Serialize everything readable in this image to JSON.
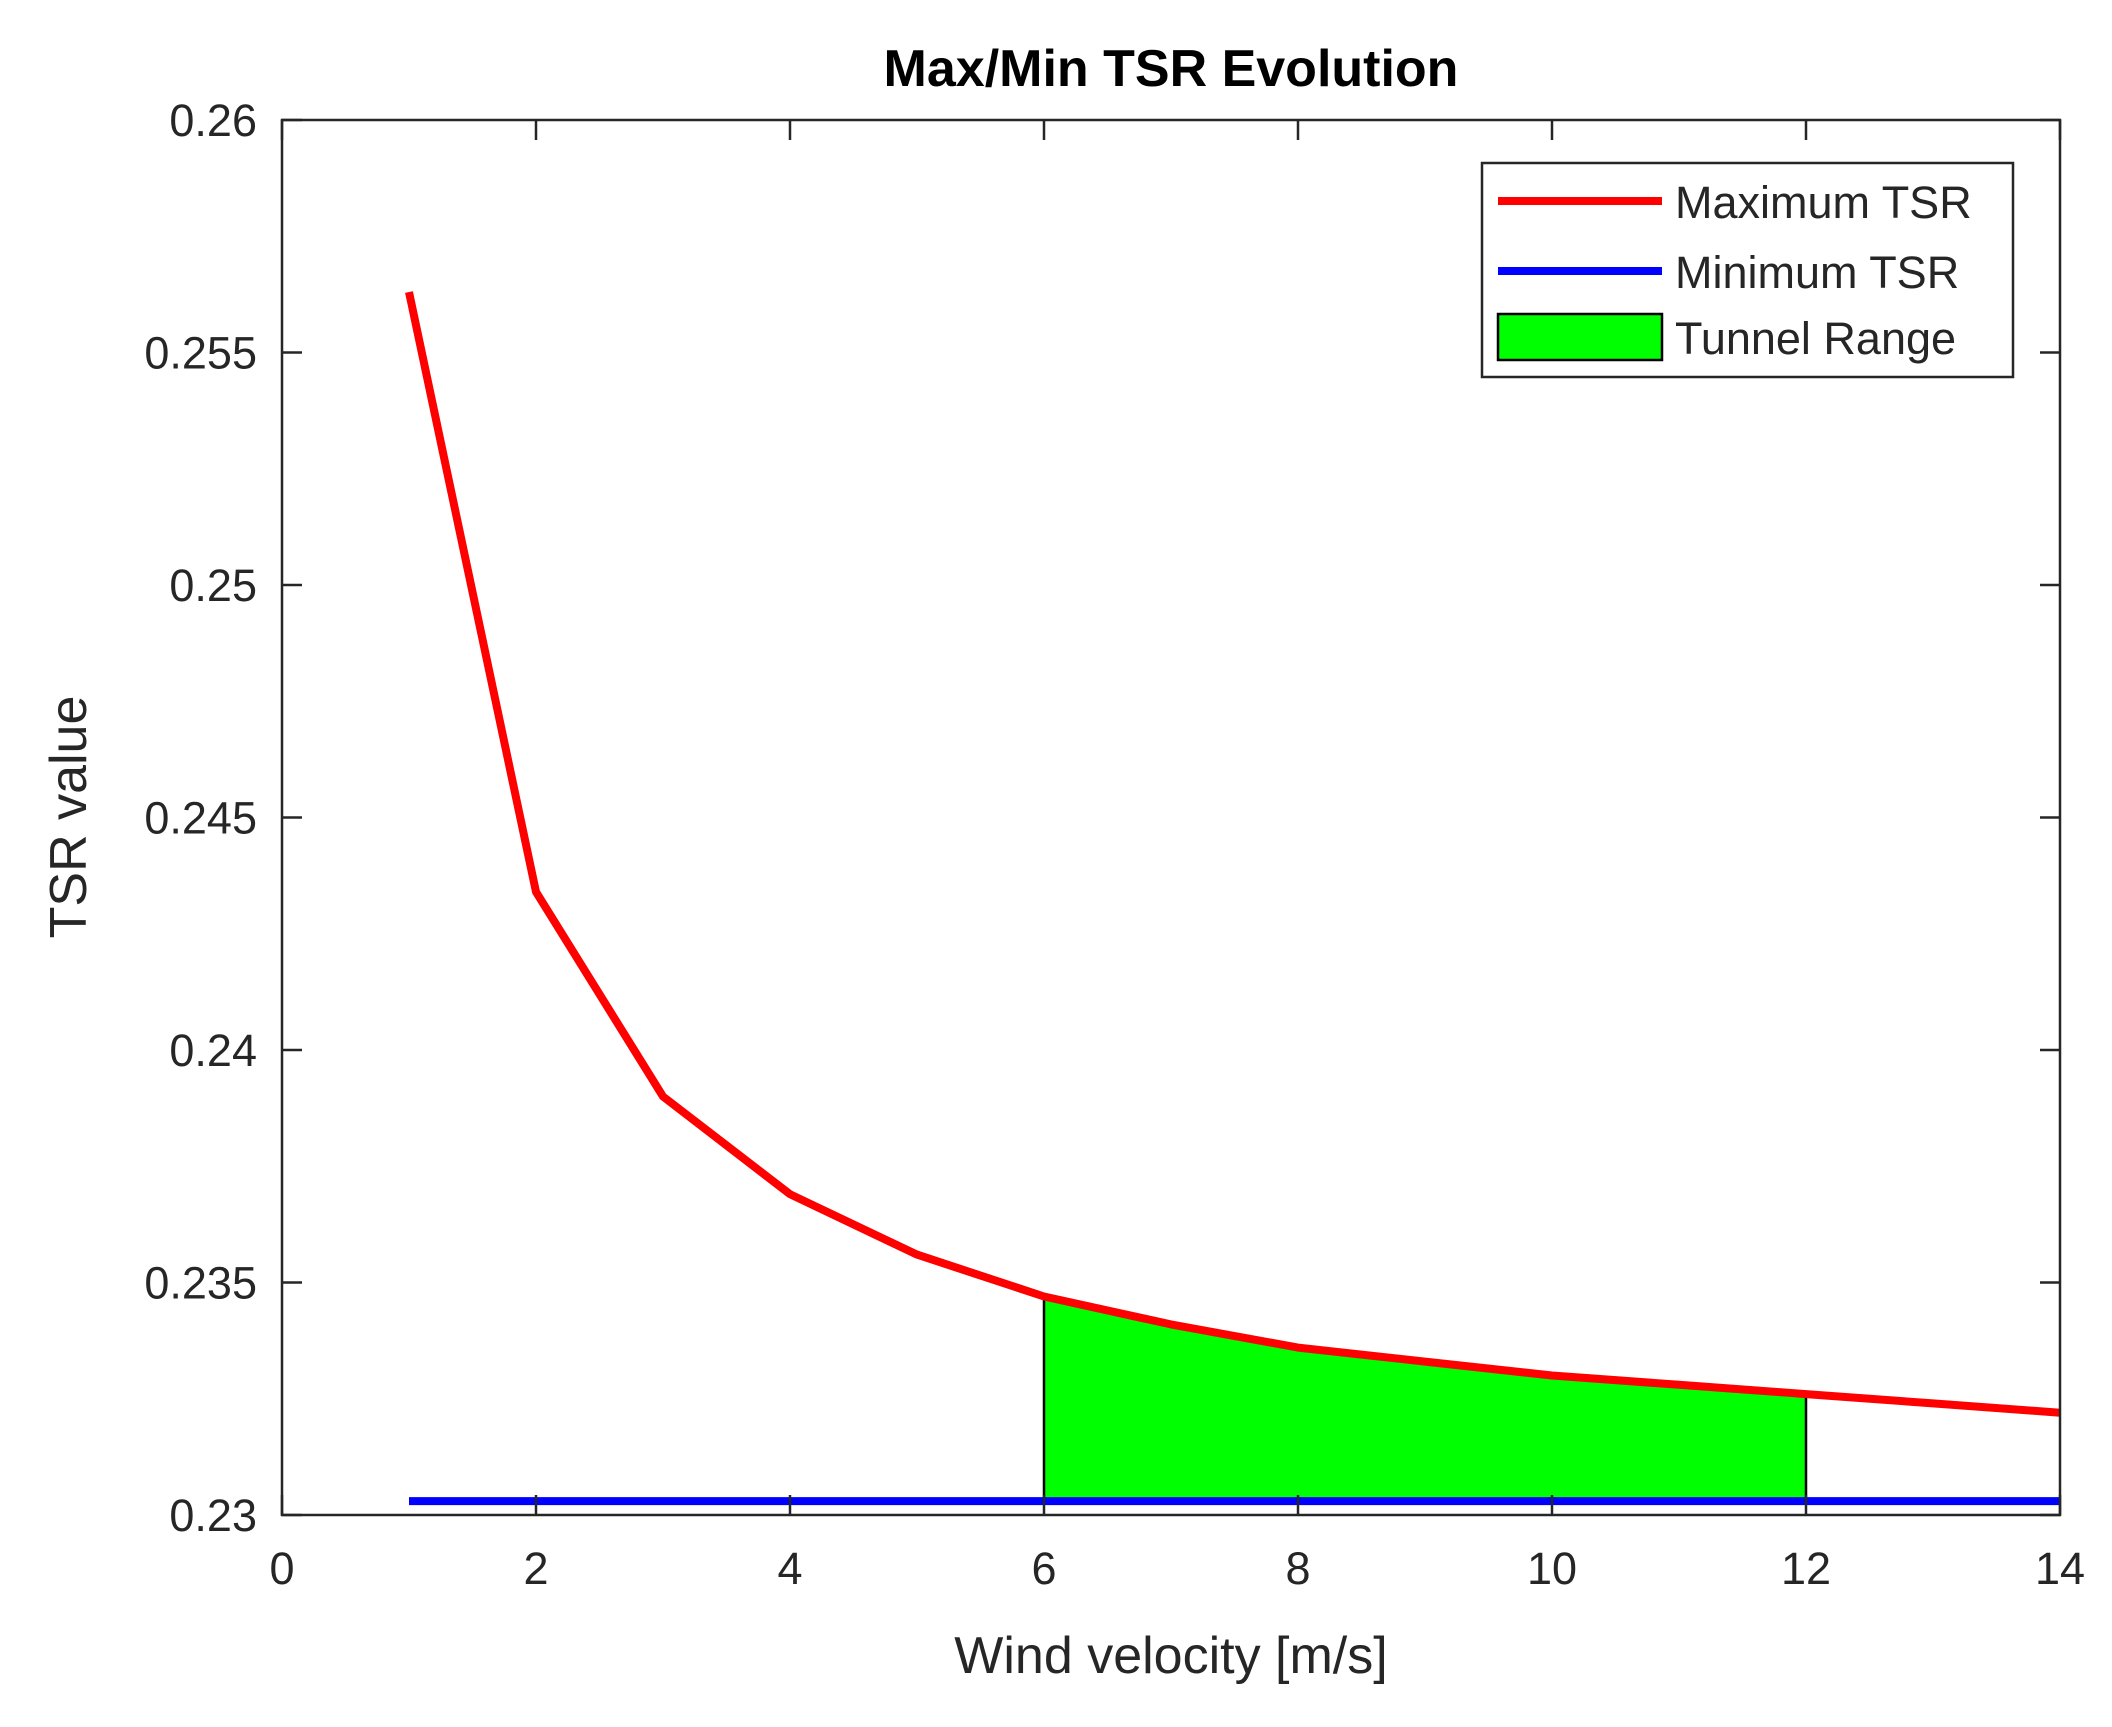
{
  "chart_data": {
    "type": "line",
    "title": "Max/Min TSR Evolution",
    "xlabel": "Wind velocity [m/s]",
    "ylabel": "TSR value",
    "xlim": [
      0,
      14
    ],
    "ylim": [
      0.23,
      0.26
    ],
    "xticks": [
      0,
      2,
      4,
      6,
      8,
      10,
      12,
      14
    ],
    "xtick_labels": [
      "0",
      "2",
      "4",
      "6",
      "8",
      "10",
      "12",
      "14"
    ],
    "yticks": [
      0.23,
      0.235,
      0.24,
      0.245,
      0.25,
      0.255,
      0.26
    ],
    "ytick_labels": [
      "0.23",
      "0.235",
      "0.24",
      "0.245",
      "0.25",
      "0.255",
      "0.26"
    ],
    "grid": false,
    "legend_position": "top-right",
    "series": [
      {
        "name": "Maximum TSR",
        "color": "#ff0000",
        "x": [
          1,
          2,
          3,
          4,
          5,
          6,
          7,
          8,
          9,
          10,
          11,
          12,
          13,
          14
        ],
        "y": [
          0.2563,
          0.2434,
          0.239,
          0.2369,
          0.2356,
          0.2347,
          0.2341,
          0.2336,
          0.2333,
          0.233,
          0.2328,
          0.2326,
          0.2324,
          0.2322
        ]
      },
      {
        "name": "Minimum TSR",
        "color": "#0000ff",
        "x": [
          1,
          14
        ],
        "y": [
          0.2303,
          0.2303
        ]
      }
    ],
    "filled_region": {
      "name": "Tunnel Range",
      "color": "#00ff00",
      "x_start": 6,
      "x_end": 12,
      "lower": 0.2303
    }
  }
}
